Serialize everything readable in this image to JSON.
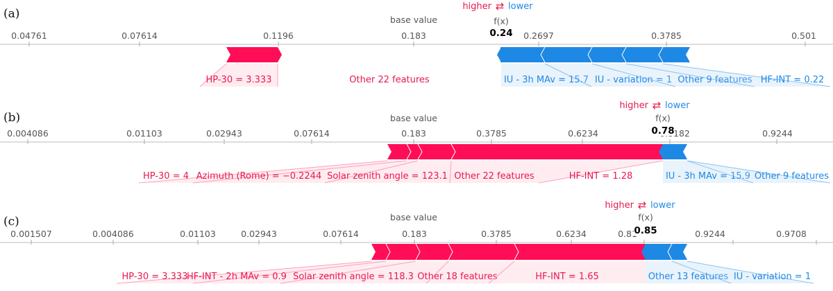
{
  "chart_data": [
    {
      "type": "force",
      "panel_label": "(a)",
      "legend": {
        "higher": "higher",
        "lower": "lower",
        "arrows": "⇄"
      },
      "base_value_label": "base value",
      "fx_label": "f(x)",
      "fx_value": "0.24",
      "ticks": [
        "0.04761",
        "0.07614",
        "0.1196",
        "0.183",
        "0.2697",
        "0.3785",
        "0.501"
      ],
      "base_tick": "0.183",
      "positive_features": [
        "HP-30 = 3.333",
        "Other 22 features"
      ],
      "negative_features": [
        "IU - 3h MAv = 15.7",
        "IU - variation = 1",
        "Other 9 features",
        "HF-INT = 0.22"
      ]
    },
    {
      "type": "force",
      "panel_label": "(b)",
      "legend": {
        "higher": "higher",
        "lower": "lower",
        "arrows": "⇄"
      },
      "base_value_label": "base value",
      "fx_label": "f(x)",
      "fx_value": "0.78",
      "ticks": [
        "0.004086",
        "0.01103",
        "0.02943",
        "0.07614",
        "0.183",
        "0.3785",
        "0.6234",
        "0.8182",
        "0.9244"
      ],
      "base_tick": "0.183",
      "positive_features": [
        "HP-30 = 4",
        "Azimuth (Rome) = −0.2244",
        "Solar zenith angle = 123.1",
        "Other 22 features",
        "HF-INT = 1.28"
      ],
      "negative_features": [
        "IU - 3h MAv = 15.9",
        "Other 9 features"
      ]
    },
    {
      "type": "force",
      "panel_label": "(c)",
      "legend": {
        "higher": "higher",
        "lower": "lower",
        "arrows": "⇄"
      },
      "base_value_label": "base value",
      "fx_label": "f(x)",
      "fx_value": "0.85",
      "ticks": [
        "0.001507",
        "0.004086",
        "0.01103",
        "0.02943",
        "0.07614",
        "0.183",
        "0.3785",
        "0.6234",
        "0.81",
        "0.9244",
        "0.9708"
      ],
      "base_tick": "0.183",
      "positive_features": [
        "HP-30 = 3.333",
        "HF-INT - 2h MAv = 0.9",
        "Solar zenith angle = 118.3",
        "Other 18 features",
        "HF-INT = 1.65"
      ],
      "negative_features": [
        "Other 13 features",
        "IU - variation = 1"
      ]
    }
  ]
}
